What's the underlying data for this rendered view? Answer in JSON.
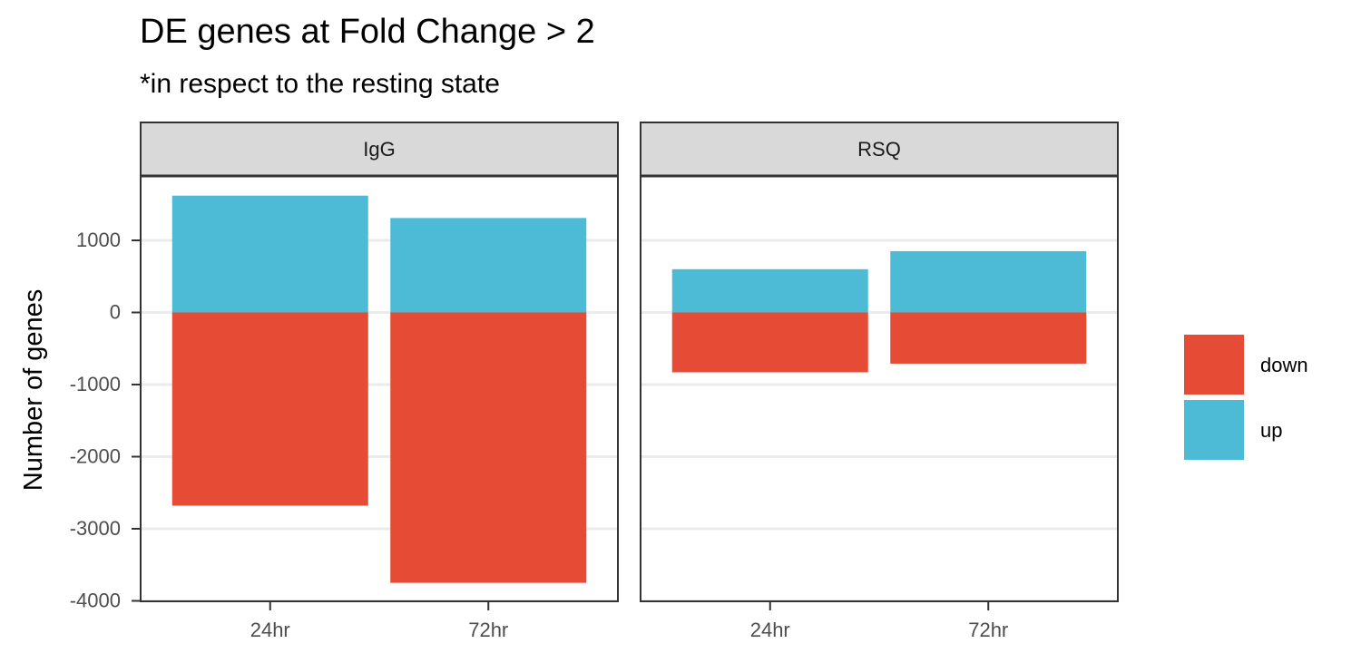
{
  "chart_data": {
    "type": "bar",
    "stacked": true,
    "title": "DE genes at Fold Change > 2",
    "subtitle": "*in respect to the resting state",
    "ylabel": "Number of genes",
    "xlabel": "",
    "ylim": [
      -4000,
      1800
    ],
    "yticks": [
      1000,
      0,
      -1000,
      -2000,
      -3000,
      -4000
    ],
    "ytick_labels": [
      "1000",
      "0",
      "-1000",
      "-2000",
      "-3000",
      "-4000"
    ],
    "grid": true,
    "legend_position": "right",
    "categories": [
      "24hr",
      "72hr"
    ],
    "panels": [
      {
        "name": "IgG",
        "series": [
          {
            "name": "down",
            "values": [
              -2680,
              -3750
            ]
          },
          {
            "name": "up",
            "values": [
              1620,
              1310
            ]
          }
        ]
      },
      {
        "name": "RSQ",
        "series": [
          {
            "name": "down",
            "values": [
              -830,
              -710
            ]
          },
          {
            "name": "up",
            "values": [
              600,
              850
            ]
          }
        ]
      }
    ],
    "legend": [
      {
        "name": "down",
        "color": "#E64B35"
      },
      {
        "name": "up",
        "color": "#4DBBD5"
      }
    ],
    "colors": {
      "down": "#E64B35",
      "up": "#4DBBD5",
      "strip_fill": "#D9D9D9",
      "grid": "#EBEBEB",
      "frame": "#333333",
      "tick_text": "#4D4D4D"
    }
  }
}
